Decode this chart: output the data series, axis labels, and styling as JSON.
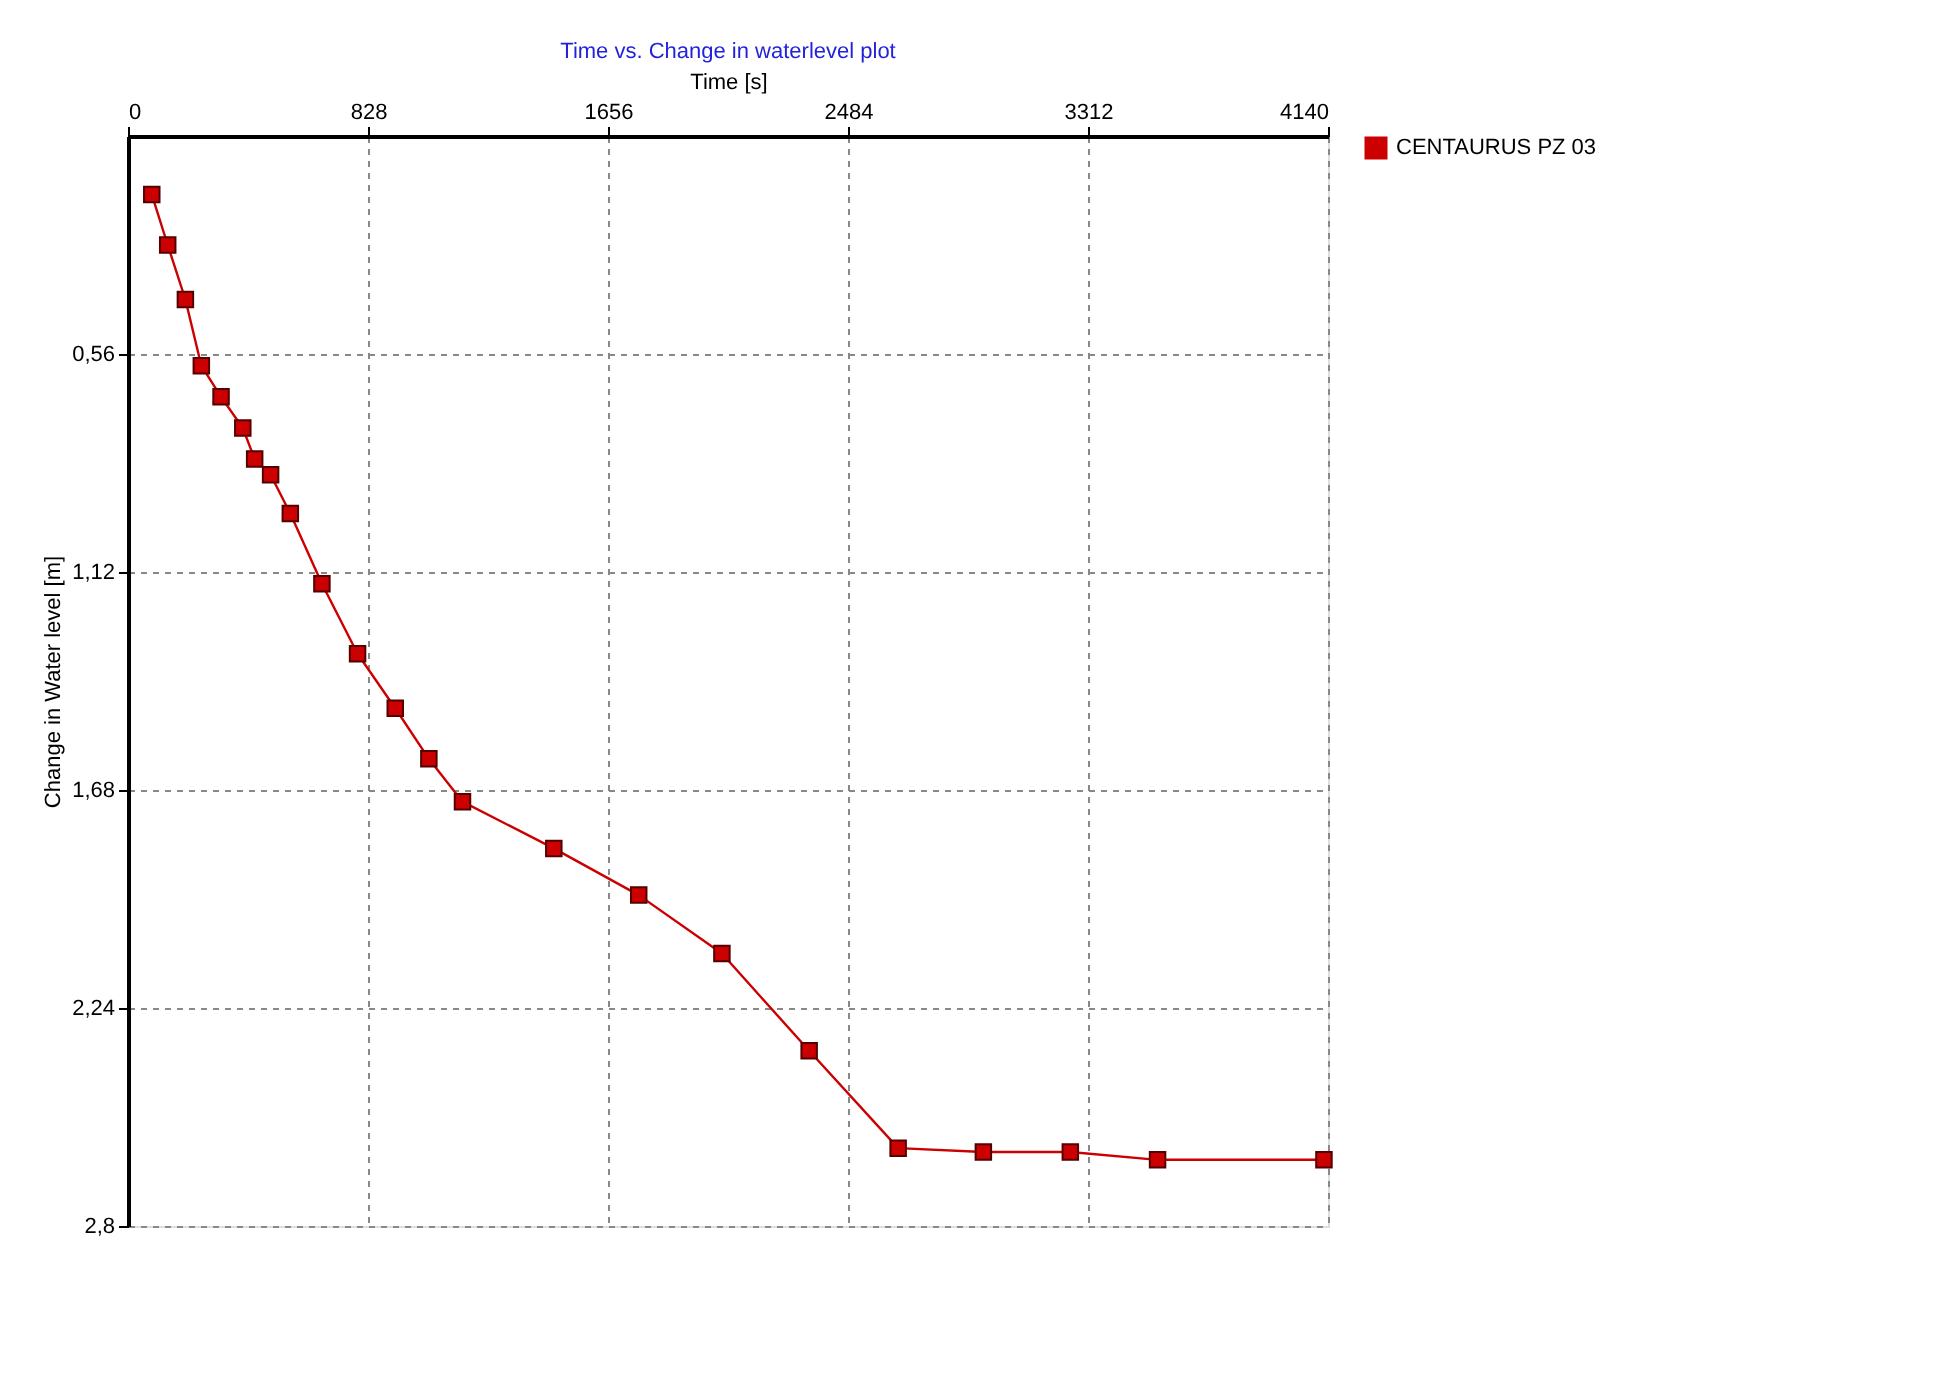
{
  "chart_data": {
    "type": "line",
    "title": "Time vs. Change in waterlevel plot",
    "xlabel": "Time [s]",
    "ylabel": "Change in Water level [m]",
    "x": [
      82,
      137,
      198,
      253,
      321,
      396,
      437,
      492,
      560,
      669,
      792,
      922,
      1038,
      1154,
      1469,
      1762,
      2049,
      2350,
      2657,
      2951,
      3251,
      3552,
      4126
    ],
    "series": [
      {
        "name": "CENTAURUS PZ 03",
        "color": "#cc0000",
        "values": [
          0.15,
          0.28,
          0.42,
          0.59,
          0.67,
          0.75,
          0.83,
          0.87,
          0.97,
          1.15,
          1.33,
          1.47,
          1.6,
          1.71,
          1.83,
          1.95,
          2.1,
          2.35,
          2.6,
          2.61,
          2.61,
          2.63,
          2.63
        ]
      }
    ],
    "xlim": [
      0,
      4140
    ],
    "xticks": [
      0,
      828,
      1656,
      2484,
      3312,
      4140
    ],
    "ylim": [
      2.8,
      0
    ],
    "yticks": [
      {
        "value": 0.56,
        "label": "0,56"
      },
      {
        "value": 1.12,
        "label": "1,12"
      },
      {
        "value": 1.68,
        "label": "1,68"
      },
      {
        "value": 2.24,
        "label": "2,24"
      },
      {
        "value": 2.8,
        "label": "2,8"
      }
    ],
    "grid": true,
    "legend": "top right",
    "marker": "square",
    "line_style": "solid"
  }
}
